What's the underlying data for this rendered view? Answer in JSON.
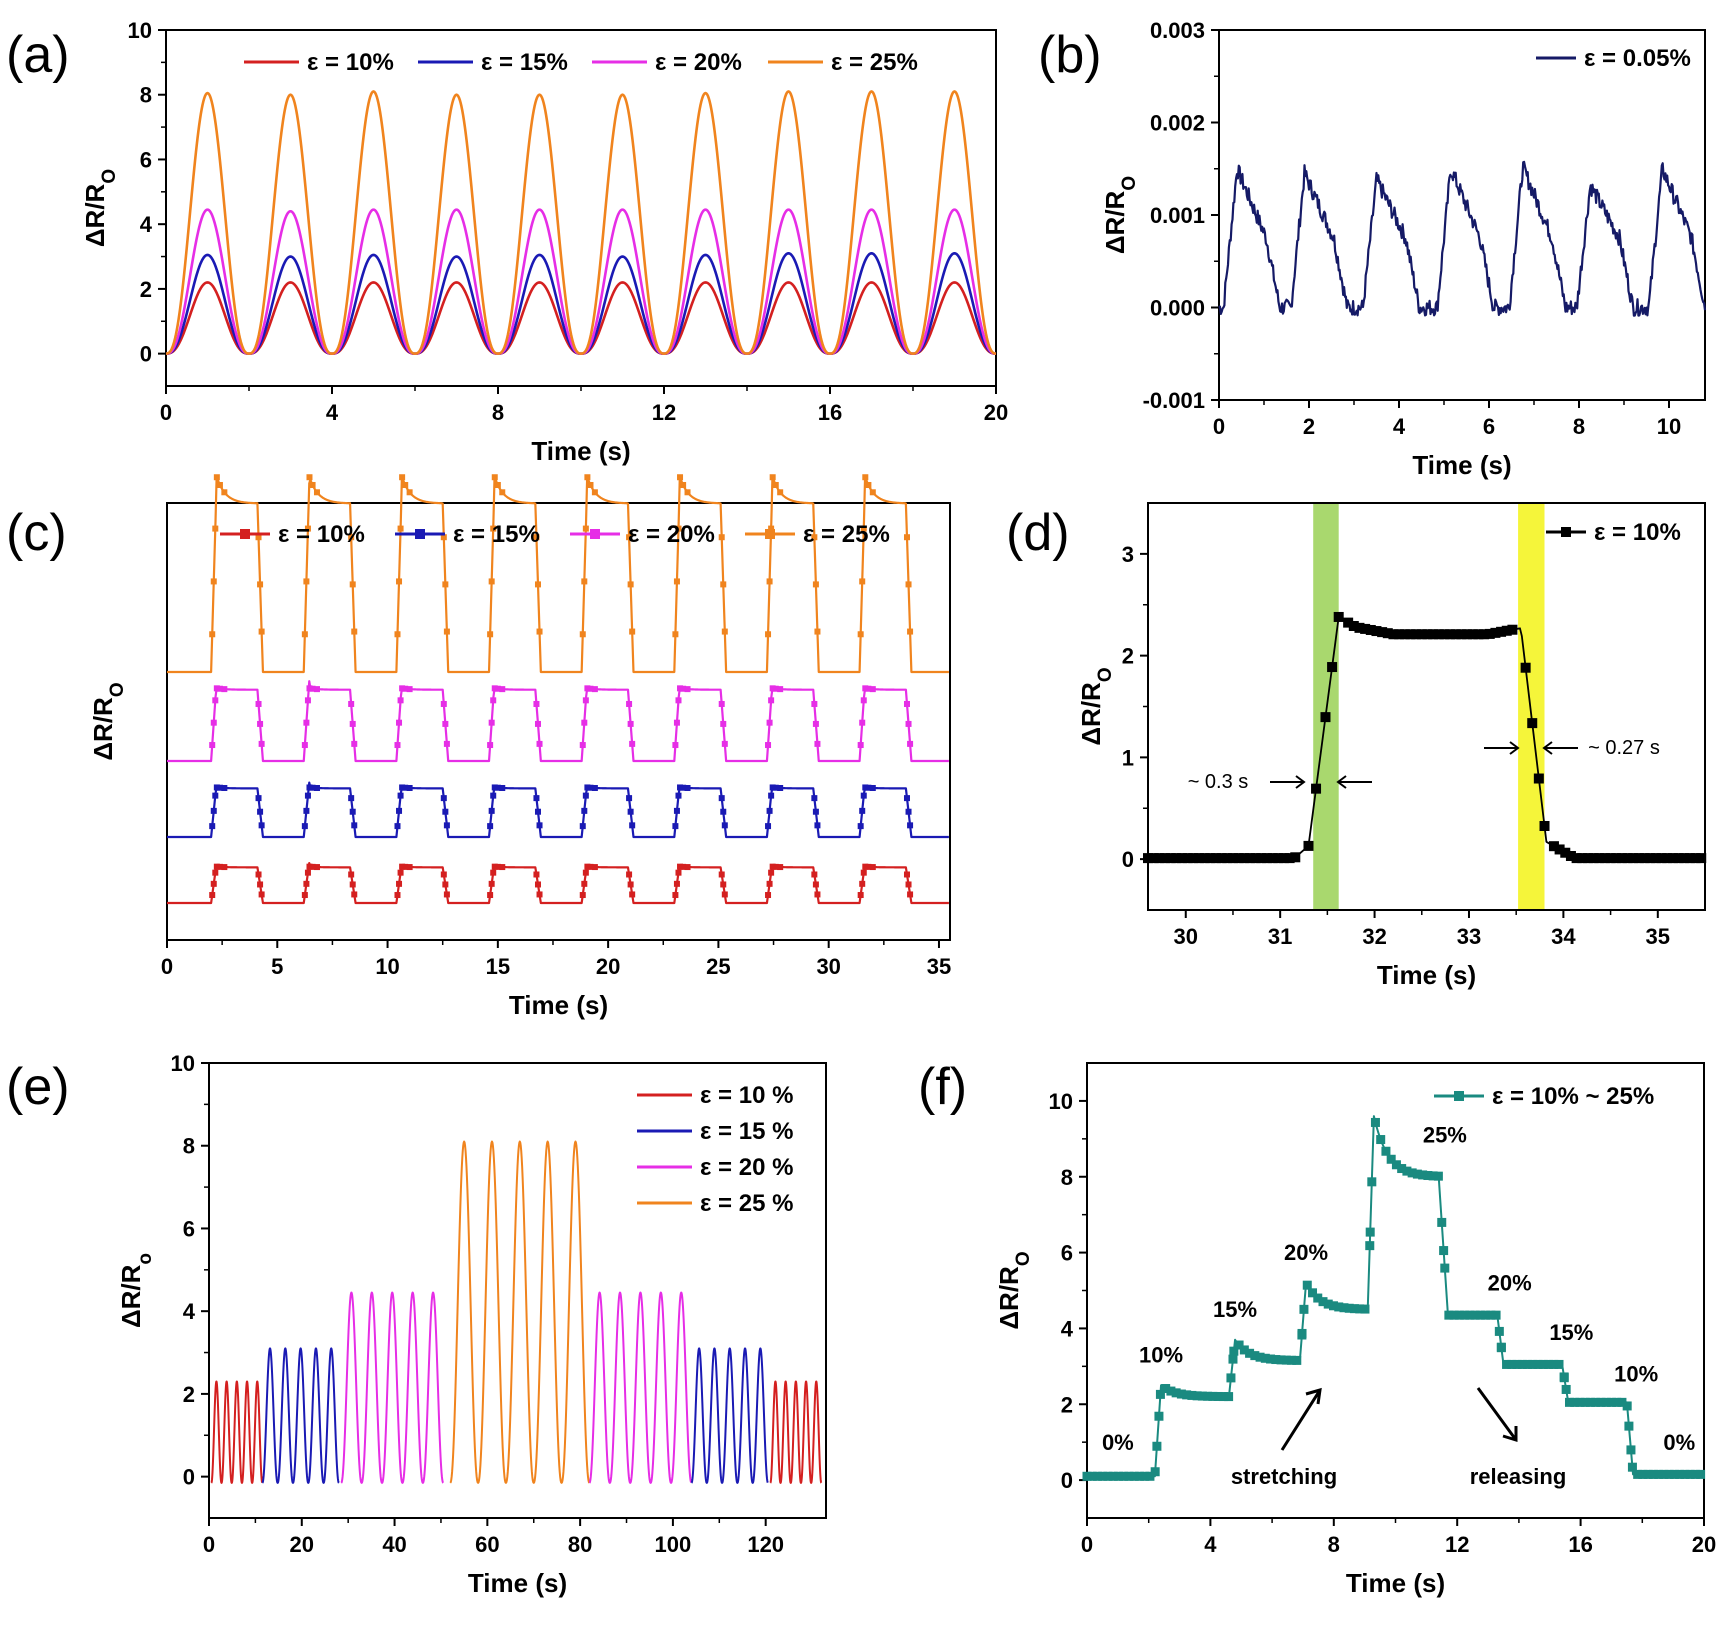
{
  "figure": {
    "panels": [
      "(a)",
      "(b)",
      "(c)",
      "(d)",
      "(e)",
      "(f)"
    ]
  },
  "colors": {
    "red": "#d42020",
    "blue": "#1a1ab4",
    "magenta": "#e62ee6",
    "orange": "#f0841e",
    "navy": "#151a66",
    "black": "#000000",
    "teal": "#1a8a80",
    "green_band": "#a9d86e",
    "yellow_band": "#f5f53a"
  },
  "chart_data": [
    {
      "panel": "(a)",
      "type": "line",
      "xlabel": "Time (s)",
      "ylabel_main": "ΔR/R",
      "ylabel_sub": "O",
      "xlim": [
        0,
        20
      ],
      "ylim": [
        -1,
        10
      ],
      "xticks": [
        0,
        4,
        8,
        12,
        16,
        20
      ],
      "yticks": [
        0,
        2,
        4,
        6,
        8,
        10
      ],
      "waveform": "periodic-bell",
      "period_s": 2,
      "first_peak_s": 1,
      "cycles": 10,
      "series": [
        {
          "name": "ε = 10%",
          "color_key": "red",
          "peak": 2.2,
          "peaks": [
            2.2,
            2.2,
            2.2,
            2.2,
            2.2,
            2.2,
            2.2,
            2.2,
            2.2,
            2.2
          ]
        },
        {
          "name": "ε = 15%",
          "color_key": "blue",
          "peak": 3.05,
          "peaks": [
            3.05,
            3.0,
            3.05,
            3.0,
            3.05,
            3.0,
            3.05,
            3.1,
            3.1,
            3.1
          ]
        },
        {
          "name": "ε = 20%",
          "color_key": "magenta",
          "peak": 4.45,
          "peaks": [
            4.45,
            4.4,
            4.45,
            4.45,
            4.45,
            4.45,
            4.45,
            4.45,
            4.45,
            4.45
          ]
        },
        {
          "name": "ε = 25%",
          "color_key": "orange",
          "peak": 8.05,
          "peaks": [
            8.05,
            8.0,
            8.1,
            8.0,
            8.0,
            8.0,
            8.05,
            8.1,
            8.1,
            8.1
          ]
        }
      ]
    },
    {
      "panel": "(b)",
      "type": "line",
      "xlabel": "Time (s)",
      "ylabel_main": "ΔR/R",
      "ylabel_sub": "O",
      "xlim": [
        0,
        10.8
      ],
      "ylim": [
        -0.001,
        0.003
      ],
      "xticks": [
        0,
        2,
        4,
        6,
        8,
        10
      ],
      "yticks": [
        -0.001,
        0.0,
        0.001,
        0.002,
        0.003
      ],
      "ytick_labels": [
        "-0.001",
        "0.000",
        "0.001",
        "0.002",
        "0.003"
      ],
      "series": [
        {
          "name": "ε = 0.05%",
          "color_key": "navy",
          "cycle_starts": [
            0.1,
            1.6,
            3.2,
            4.85,
            6.45,
            7.95,
            9.55
          ],
          "cycle_peaks": [
            0.0015,
            0.00145,
            0.00138,
            0.0015,
            0.00152,
            0.00132,
            0.0015
          ]
        }
      ]
    },
    {
      "panel": "(c)",
      "type": "line",
      "xlabel": "Time (s)",
      "ylabel_main": "ΔR/R",
      "ylabel_sub": "O",
      "xlim": [
        0,
        35.5
      ],
      "xticks": [
        0,
        5,
        10,
        15,
        20,
        25,
        30,
        35
      ],
      "y_offset_stacked": true,
      "cycle_rises_s": [
        2.0,
        6.2,
        10.4,
        14.6,
        18.8,
        23.0,
        27.2,
        31.4
      ],
      "on_duration_s": 2.1,
      "series": [
        {
          "name": "ε = 10%",
          "color_key": "red",
          "amplitude": 2.2
        },
        {
          "name": "ε = 15%",
          "color_key": "blue",
          "amplitude": 3.0
        },
        {
          "name": "ε = 20%",
          "color_key": "magenta",
          "amplitude": 4.4
        },
        {
          "name": "ε = 25%",
          "color_key": "orange",
          "amplitude": 8.0
        }
      ]
    },
    {
      "panel": "(d)",
      "type": "line",
      "xlabel": "Time (s)",
      "ylabel_main": "ΔR/R",
      "ylabel_sub": "O",
      "xlim": [
        29.6,
        35.5
      ],
      "ylim": [
        -0.5,
        3.5
      ],
      "xticks": [
        30,
        31,
        32,
        33,
        34,
        35
      ],
      "yticks": [
        0,
        1,
        2,
        3
      ],
      "series": [
        {
          "name": "ε = 10%",
          "color_key": "black"
        }
      ],
      "highlight_bands": [
        {
          "from": 31.35,
          "to": 31.62,
          "color_key": "green_band"
        },
        {
          "from": 33.52,
          "to": 33.8,
          "color_key": "yellow_band"
        }
      ],
      "annotations": [
        "~ 0.3 s",
        "~ 0.27 s"
      ]
    },
    {
      "panel": "(e)",
      "type": "line",
      "xlabel": "Time (s)",
      "ylabel_main": "ΔR/R",
      "ylabel_sub": "o",
      "xlim": [
        0,
        133
      ],
      "ylim": [
        -1,
        10
      ],
      "xticks": [
        0,
        20,
        40,
        60,
        80,
        100,
        120
      ],
      "yticks": [
        0,
        2,
        4,
        6,
        8,
        10
      ],
      "series": [
        {
          "name": "ε = 10 %",
          "color_key": "red",
          "peak": 2.3
        },
        {
          "name": "ε = 15 %",
          "color_key": "blue",
          "peak": 3.1
        },
        {
          "name": "ε = 20 %",
          "color_key": "magenta",
          "peak": 4.45
        },
        {
          "name": "ε = 25 %",
          "color_key": "orange",
          "peak": 8.1
        }
      ],
      "segments": [
        {
          "series": 0,
          "start": 0.5,
          "period": 2.2,
          "count": 5
        },
        {
          "series": 1,
          "start": 11.5,
          "period": 3.3,
          "count": 5
        },
        {
          "series": 2,
          "start": 28.5,
          "period": 4.4,
          "count": 5
        },
        {
          "series": 3,
          "start": 52.0,
          "period": 6.0,
          "count": 5
        },
        {
          "series": 2,
          "start": 82.0,
          "period": 4.4,
          "count": 5
        },
        {
          "series": 1,
          "start": 104.0,
          "period": 3.3,
          "count": 5
        },
        {
          "series": 0,
          "start": 121.0,
          "period": 2.2,
          "count": 5
        }
      ]
    },
    {
      "panel": "(f)",
      "type": "line",
      "xlabel": "Time (s)",
      "ylabel_main": "ΔR/R",
      "ylabel_sub": "O",
      "xlim": [
        0,
        20
      ],
      "ylim": [
        -1,
        11
      ],
      "xticks": [
        0,
        4,
        8,
        12,
        16,
        20
      ],
      "yticks": [
        0,
        2,
        4,
        6,
        8,
        10
      ],
      "series": [
        {
          "name": "ε = 10% ~ 25%",
          "color_key": "teal"
        }
      ],
      "stair_levels": [
        {
          "t0": 0.0,
          "t1": 2.2,
          "level": 0.1
        },
        {
          "t0": 2.4,
          "t1": 4.6,
          "peak": 2.5,
          "settle": 2.2
        },
        {
          "t0": 4.8,
          "t1": 6.9,
          "peak": 3.7,
          "settle": 3.15
        },
        {
          "t0": 7.1,
          "t1": 9.1,
          "peak": 5.2,
          "settle": 4.5
        },
        {
          "t0": 9.3,
          "t1": 11.4,
          "peak": 9.6,
          "settle": 8.0
        },
        {
          "t0": 11.7,
          "t1": 13.3,
          "level": 4.35
        },
        {
          "t0": 13.5,
          "t1": 15.4,
          "level": 3.05
        },
        {
          "t0": 15.6,
          "t1": 17.5,
          "level": 2.05
        },
        {
          "t0": 17.7,
          "t1": 20.0,
          "level": 0.15
        }
      ],
      "point_labels": [
        {
          "text": "0%",
          "x": 1.0,
          "y": 0.8
        },
        {
          "text": "10%",
          "x": 2.4,
          "y": 3.1
        },
        {
          "text": "15%",
          "x": 4.8,
          "y": 4.3
        },
        {
          "text": "20%",
          "x": 7.1,
          "y": 5.8
        },
        {
          "text": "25%",
          "x": 11.6,
          "y": 8.9
        },
        {
          "text": "20%",
          "x": 13.7,
          "y": 5.0
        },
        {
          "text": "15%",
          "x": 15.7,
          "y": 3.7
        },
        {
          "text": "10%",
          "x": 17.8,
          "y": 2.6
        },
        {
          "text": "0%",
          "x": 19.2,
          "y": 0.8
        }
      ],
      "annotations": [
        "stretching",
        "releasing"
      ]
    }
  ]
}
